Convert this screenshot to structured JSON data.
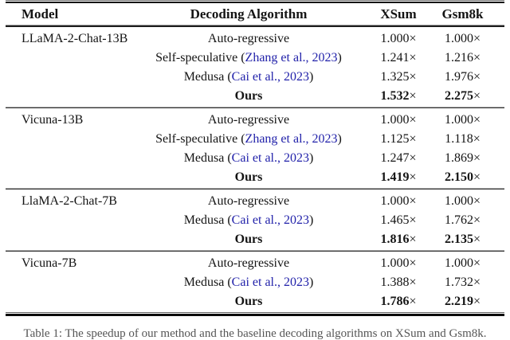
{
  "colors": {
    "citation_blue": "#2222aa",
    "text": "#141414",
    "background": "#ffffff"
  },
  "table": {
    "headers": {
      "model": "Model",
      "algorithm": "Decoding Algorithm",
      "xsum": "XSum",
      "gsm8k": "Gsm8k"
    },
    "times_symbol": "×",
    "sections": [
      {
        "model": "LLaMA-2-Chat-13B",
        "rows": [
          {
            "algo_prefix": "Auto-regressive",
            "citation": "",
            "algo_suffix": "",
            "xsum": "1.000",
            "gsm8k": "1.000"
          },
          {
            "algo_prefix": "Self-speculative (",
            "citation": "Zhang et al., 2023",
            "algo_suffix": ")",
            "xsum": "1.241",
            "gsm8k": "1.216"
          },
          {
            "algo_prefix": "Medusa (",
            "citation": "Cai et al., 2023",
            "algo_suffix": ")",
            "xsum": "1.325",
            "gsm8k": "1.976"
          },
          {
            "algo_prefix": "Ours",
            "citation": "",
            "algo_suffix": "",
            "xsum": "1.532",
            "gsm8k": "2.275"
          }
        ]
      },
      {
        "model": "Vicuna-13B",
        "rows": [
          {
            "algo_prefix": "Auto-regressive",
            "citation": "",
            "algo_suffix": "",
            "xsum": "1.000",
            "gsm8k": "1.000"
          },
          {
            "algo_prefix": "Self-speculative (",
            "citation": "Zhang et al., 2023",
            "algo_suffix": ")",
            "xsum": "1.125",
            "gsm8k": "1.118"
          },
          {
            "algo_prefix": "Medusa (",
            "citation": "Cai et al., 2023",
            "algo_suffix": ")",
            "xsum": "1.247",
            "gsm8k": "1.869"
          },
          {
            "algo_prefix": "Ours",
            "citation": "",
            "algo_suffix": "",
            "xsum": "1.419",
            "gsm8k": "2.150"
          }
        ]
      },
      {
        "model": "LlaMA-2-Chat-7B",
        "rows": [
          {
            "algo_prefix": "Auto-regressive",
            "citation": "",
            "algo_suffix": "",
            "xsum": "1.000",
            "gsm8k": "1.000"
          },
          {
            "algo_prefix": "Medusa (",
            "citation": "Cai et al., 2023",
            "algo_suffix": ")",
            "xsum": "1.465",
            "gsm8k": "1.762"
          },
          {
            "algo_prefix": "Ours",
            "citation": "",
            "algo_suffix": "",
            "xsum": "1.816",
            "gsm8k": "2.135"
          }
        ]
      },
      {
        "model": "Vicuna-7B",
        "rows": [
          {
            "algo_prefix": "Auto-regressive",
            "citation": "",
            "algo_suffix": "",
            "xsum": "1.000",
            "gsm8k": "1.000"
          },
          {
            "algo_prefix": "Medusa (",
            "citation": "Cai et al., 2023",
            "algo_suffix": ")",
            "xsum": "1.388",
            "gsm8k": "1.732"
          },
          {
            "algo_prefix": "Ours",
            "citation": "",
            "algo_suffix": "",
            "xsum": "1.786",
            "gsm8k": "2.219"
          }
        ]
      }
    ],
    "caption_clipped": "Table 1: The speedup of our method and the baseline decoding algorithms on XSum and Gsm8k."
  }
}
